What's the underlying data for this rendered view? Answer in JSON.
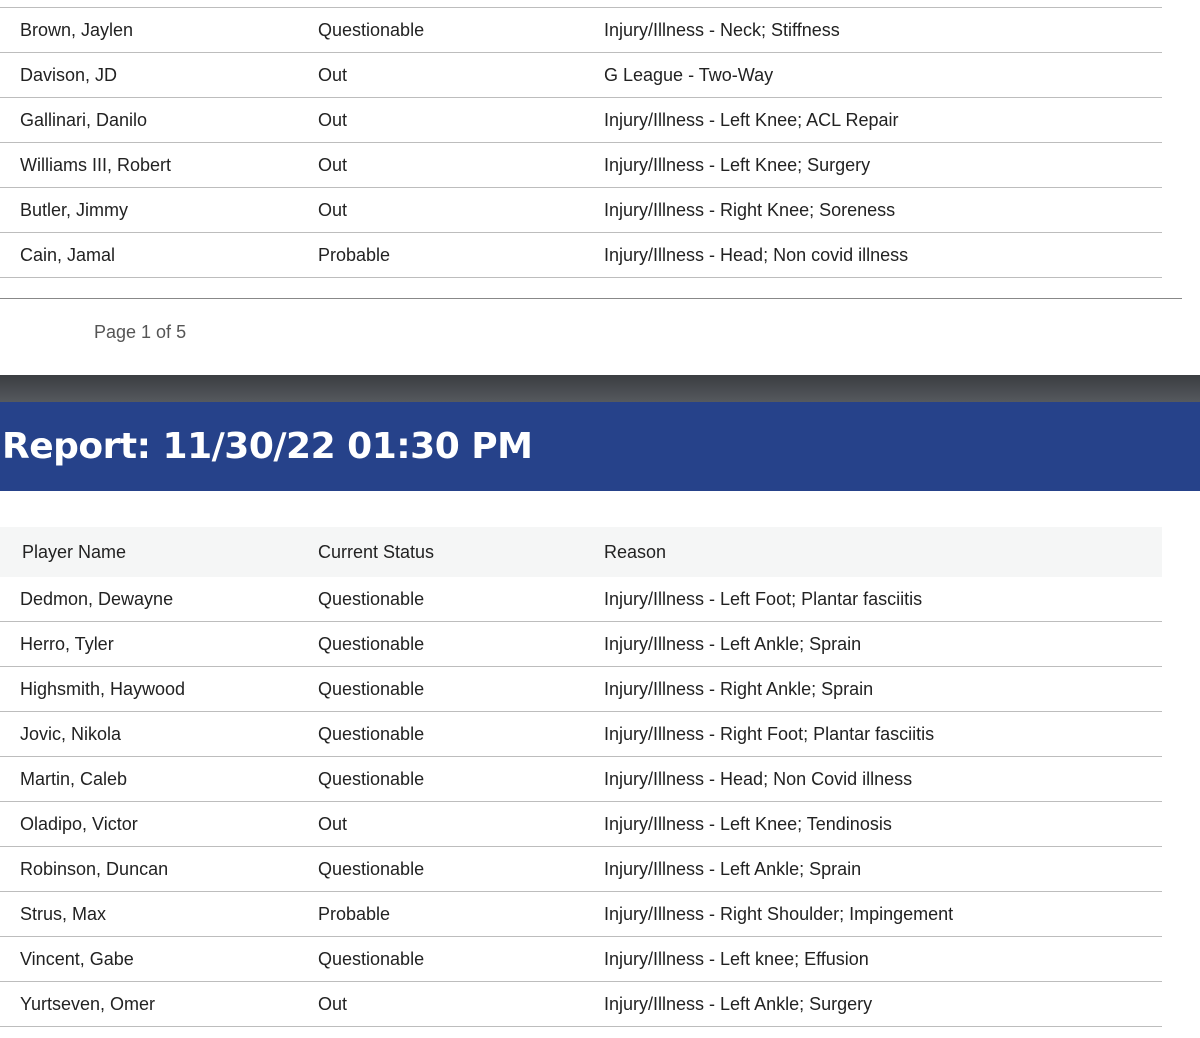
{
  "top_table": {
    "rows": [
      [
        "Brown, Jaylen",
        "Questionable",
        "Injury/Illness - Neck; Stiffness"
      ],
      [
        "Davison, JD",
        "Out",
        "G League - Two-Way"
      ],
      [
        "Gallinari, Danilo",
        "Out",
        "Injury/Illness - Left Knee; ACL Repair"
      ],
      [
        "Williams III, Robert",
        "Out",
        "Injury/Illness - Left Knee; Surgery"
      ],
      [
        "Butler, Jimmy",
        "Out",
        "Injury/Illness - Right Knee; Soreness"
      ],
      [
        "Cain, Jamal",
        "Probable",
        "Injury/Illness - Head; Non covid illness"
      ]
    ]
  },
  "footer": {
    "page_label": "Page 1 of 5"
  },
  "report": {
    "title": "Report: 11/30/22 01:30 PM"
  },
  "bottom_table": {
    "headers": [
      "Player Name",
      "Current Status",
      "Reason"
    ],
    "rows": [
      [
        "Dedmon, Dewayne",
        "Questionable",
        "Injury/Illness - Left Foot; Plantar fasciitis"
      ],
      [
        "Herro, Tyler",
        "Questionable",
        "Injury/Illness - Left Ankle; Sprain"
      ],
      [
        "Highsmith, Haywood",
        "Questionable",
        "Injury/Illness - Right Ankle; Sprain"
      ],
      [
        "Jovic, Nikola",
        "Questionable",
        "Injury/Illness - Right Foot; Plantar fasciitis"
      ],
      [
        "Martin, Caleb",
        "Questionable",
        "Injury/Illness - Head; Non Covid illness"
      ],
      [
        "Oladipo, Victor",
        "Out",
        "Injury/Illness - Left Knee; Tendinosis"
      ],
      [
        "Robinson, Duncan",
        "Questionable",
        "Injury/Illness - Left Ankle; Sprain"
      ],
      [
        "Strus, Max",
        "Probable",
        "Injury/Illness - Right Shoulder; Impingement"
      ],
      [
        "Vincent, Gabe",
        "Questionable",
        "Injury/Illness - Left knee; Effusion"
      ],
      [
        "Yurtseven, Omer",
        "Out",
        "Injury/Illness - Left Ankle; Surgery"
      ]
    ]
  },
  "colors": {
    "banner": "#26428a",
    "header_row": "#f5f6f6"
  }
}
